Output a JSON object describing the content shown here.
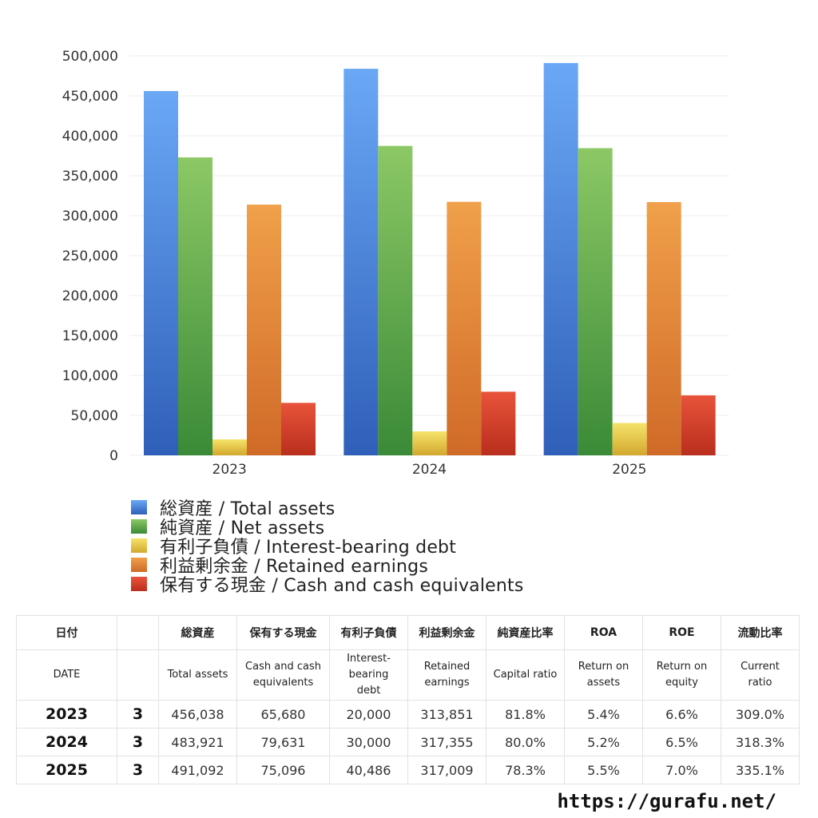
{
  "chart_data": {
    "type": "bar",
    "categories": [
      "2023",
      "2024",
      "2025"
    ],
    "series": [
      {
        "name": "総資産 / Total assets",
        "values": [
          456038,
          483921,
          491092
        ],
        "color_top": "#6aa8f5",
        "color_bottom": "#2f5fb9"
      },
      {
        "name": "純資産 / Net assets",
        "values": [
          372938,
          387355,
          384523
        ],
        "color_top": "#8cc865",
        "color_bottom": "#3a8a37"
      },
      {
        "name": "有利子負債 / Interest-bearing debt",
        "values": [
          20000,
          30000,
          40486
        ],
        "color_top": "#f5e36a",
        "color_bottom": "#d3a82e"
      },
      {
        "name": "利益剰余金 / Retained earnings",
        "values": [
          313851,
          317355,
          317009
        ],
        "color_top": "#f0a04a",
        "color_bottom": "#d06a28"
      },
      {
        "name": "保有する現金 /  Cash and cash equivalents",
        "values": [
          65680,
          79631,
          75096
        ],
        "color_top": "#e8533a",
        "color_bottom": "#b92e1d"
      }
    ],
    "ylim": [
      0,
      500000
    ],
    "yticks": [
      "0",
      "50,000",
      "100,000",
      "150,000",
      "200,000",
      "250,000",
      "300,000",
      "350,000",
      "400,000",
      "450,000",
      "500,000"
    ],
    "grid": true,
    "legend_position": "bottom-left"
  },
  "table": {
    "header_jp": [
      "日付",
      "",
      "総資産",
      "保有する現金",
      "有利子負債",
      "利益剰余金",
      "純資産比率",
      "ROA",
      "ROE",
      "流動比率"
    ],
    "header_en": [
      [
        "DATE"
      ],
      [
        ""
      ],
      [
        "Total assets"
      ],
      [
        "Cash and cash",
        "equivalents"
      ],
      [
        "Interest-",
        "bearing",
        "debt"
      ],
      [
        "Retained",
        "earnings"
      ],
      [
        "Capital ratio"
      ],
      [
        "Return on",
        "assets"
      ],
      [
        "Return on",
        "equity"
      ],
      [
        "Current",
        "ratio"
      ]
    ],
    "rows": [
      [
        "2023",
        "3",
        "456,038",
        "65,680",
        "20,000",
        "313,851",
        "81.8%",
        "5.4%",
        "6.6%",
        "309.0%"
      ],
      [
        "2024",
        "3",
        "483,921",
        "79,631",
        "30,000",
        "317,355",
        "80.0%",
        "5.2%",
        "6.5%",
        "318.3%"
      ],
      [
        "2025",
        "3",
        "491,092",
        "75,096",
        "40,486",
        "317,009",
        "78.3%",
        "5.5%",
        "7.0%",
        "335.1%"
      ]
    ]
  },
  "footer": {
    "url": "https://gurafu.net/"
  }
}
